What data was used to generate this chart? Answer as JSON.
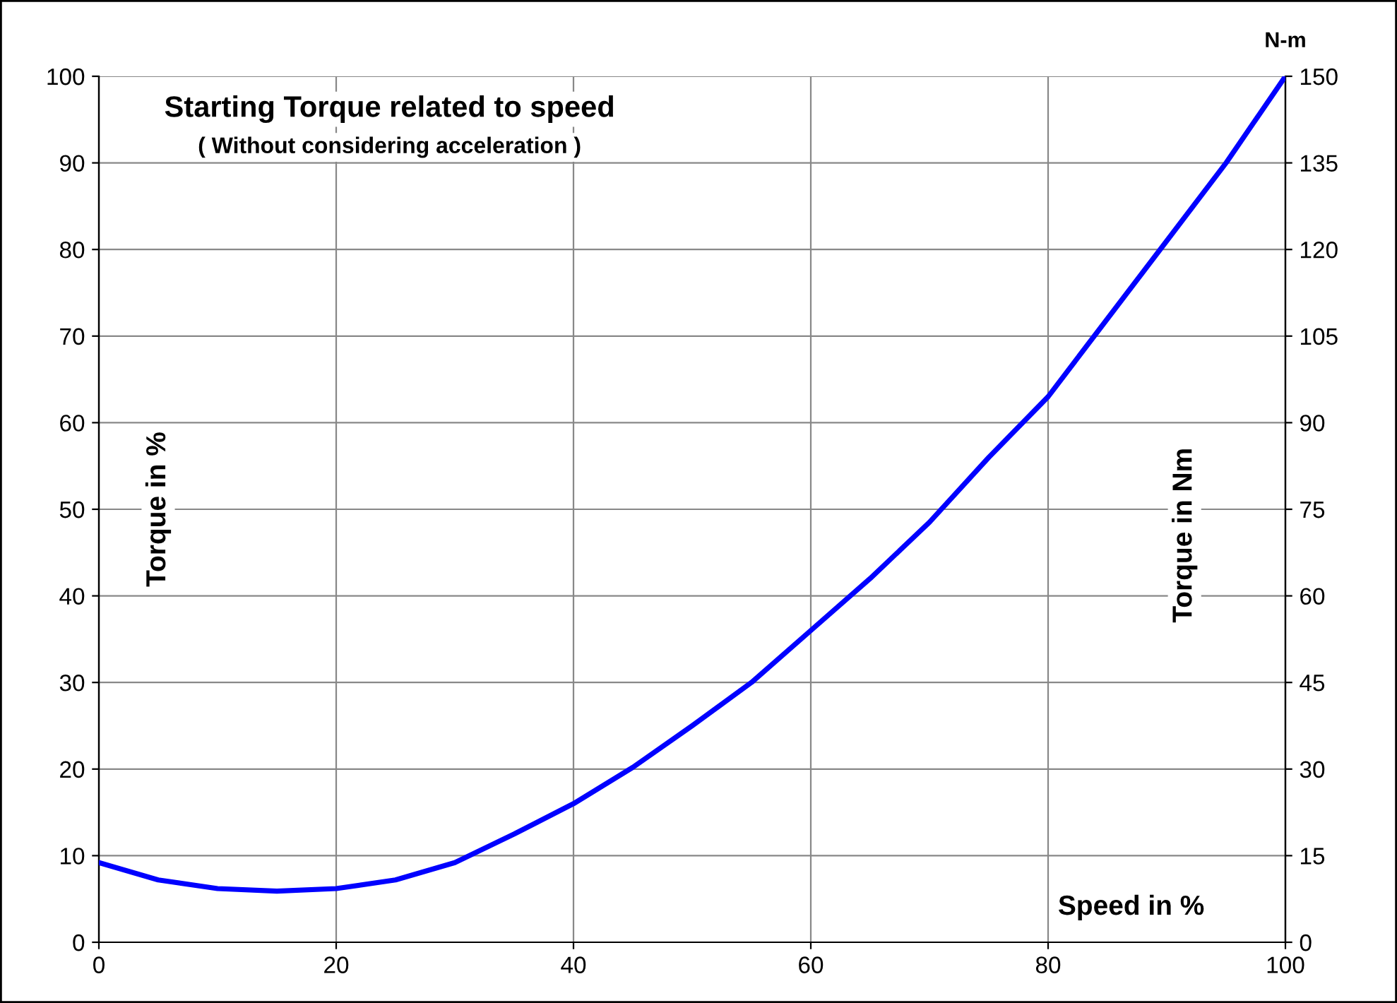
{
  "chart_data": {
    "type": "line",
    "title": "Starting Torque related to speed",
    "subtitle": "( Without considering acceleration )",
    "xlabel": "Speed in %",
    "ylabel": "Torque in %",
    "y2label": "Torque in Nm",
    "annotations": [
      "N-m"
    ],
    "x": [
      0,
      5,
      10,
      15,
      20,
      25,
      30,
      35,
      40,
      45,
      50,
      55,
      60,
      65,
      70,
      75,
      80,
      85,
      90,
      95,
      100
    ],
    "series": [
      {
        "color": "#0000ff",
        "values": [
          9.2,
          7.2,
          6.2,
          5.9,
          6.2,
          7.2,
          9.2,
          12.5,
          16,
          20.2,
          25,
          30,
          36,
          42,
          48.5,
          56,
          63,
          72,
          81,
          90,
          100
        ]
      }
    ],
    "xlim": [
      0,
      100
    ],
    "xticks": [
      0,
      20,
      40,
      60,
      80,
      100
    ],
    "ylim": [
      0,
      100
    ],
    "yticks": [
      0,
      10,
      20,
      30,
      40,
      50,
      60,
      70,
      80,
      90,
      100
    ],
    "y2lim": [
      0,
      150
    ],
    "y2ticks": [
      0,
      15,
      30,
      45,
      60,
      75,
      90,
      105,
      120,
      135,
      150
    ],
    "grid": true,
    "marker": "none",
    "line_style": "solid"
  }
}
